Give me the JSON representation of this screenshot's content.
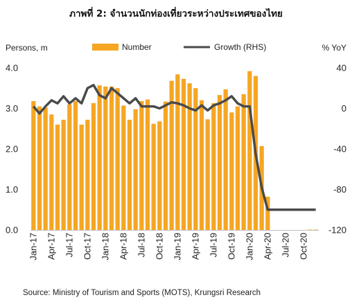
{
  "chart_data": {
    "type": "bar",
    "title": "ภาพที่ 2: จำนวนนักท่องเที่ยวระหว่างประเทศของไทย",
    "ylabel_left": "Persons, m",
    "ylabel_right": "% YoY",
    "source": "Source: Ministry of Tourism and Sports (MOTS), Krungsri Research",
    "ylim_left": [
      0,
      4
    ],
    "ylim_right": [
      -120,
      40
    ],
    "yticks_left": [
      "0.0",
      "1.0",
      "2.0",
      "3.0",
      "4.0"
    ],
    "yticks_right": [
      "-120",
      "-80",
      "-40",
      "0",
      "40"
    ],
    "grid": false,
    "legend_position": "top",
    "colors": {
      "bar": "#F5A623",
      "line": "#4A4A4A"
    },
    "x": [
      "Jan-17",
      "Feb-17",
      "Mar-17",
      "Apr-17",
      "May-17",
      "Jun-17",
      "Jul-17",
      "Aug-17",
      "Sep-17",
      "Oct-17",
      "Nov-17",
      "Dec-17",
      "Jan-18",
      "Feb-18",
      "Mar-18",
      "Apr-18",
      "May-18",
      "Jun-18",
      "Jul-18",
      "Aug-18",
      "Sep-18",
      "Oct-18",
      "Nov-18",
      "Dec-18",
      "Jan-19",
      "Feb-19",
      "Mar-19",
      "Apr-19",
      "May-19",
      "Jun-19",
      "Jul-19",
      "Aug-19",
      "Sep-19",
      "Oct-19",
      "Nov-19",
      "Dec-19",
      "Jan-20",
      "Feb-20",
      "Mar-20",
      "Apr-20",
      "May-20",
      "Jun-20",
      "Jul-20",
      "Aug-20",
      "Sep-20",
      "Oct-20",
      "Nov-20",
      "Dec-20"
    ],
    "x_tick_labels": [
      "Jan-17",
      "Apr-17",
      "Jul-17",
      "Oct-17",
      "Jan-18",
      "Apr-18",
      "Jul-18",
      "Oct-18",
      "Jan-19",
      "Apr-19",
      "Jul-19",
      "Oct-19",
      "Jan-20",
      "Apr-20",
      "Jul-20",
      "Oct-20"
    ],
    "series": [
      {
        "name": "Number",
        "kind": "bar",
        "axis": "left",
        "values": [
          3.18,
          3.05,
          3.02,
          2.85,
          2.6,
          2.72,
          3.1,
          3.18,
          2.6,
          2.72,
          3.13,
          3.57,
          3.54,
          3.54,
          3.5,
          3.07,
          2.72,
          2.98,
          3.18,
          3.22,
          2.62,
          2.68,
          3.17,
          3.68,
          3.84,
          3.73,
          3.62,
          3.5,
          3.2,
          2.73,
          3.13,
          3.33,
          3.47,
          2.9,
          3.05,
          3.35,
          3.92,
          3.8,
          2.07,
          0.82,
          0.0,
          0.0,
          0.0,
          0.0,
          0.0,
          0.0,
          0.01,
          0.01
        ]
      },
      {
        "name": "Growth (RHS)",
        "kind": "line",
        "axis": "right",
        "values": [
          2,
          -5,
          2,
          8,
          5,
          12,
          5,
          10,
          5,
          20,
          23,
          13,
          10,
          20,
          15,
          10,
          5,
          10,
          2,
          2,
          2,
          0,
          3,
          6,
          5,
          3,
          0,
          -2,
          3,
          -2,
          3,
          5,
          8,
          12,
          5,
          2,
          2,
          -45,
          -78,
          -100,
          -100,
          -100,
          -100,
          -100,
          -100,
          -100,
          -100,
          -100
        ]
      }
    ]
  }
}
